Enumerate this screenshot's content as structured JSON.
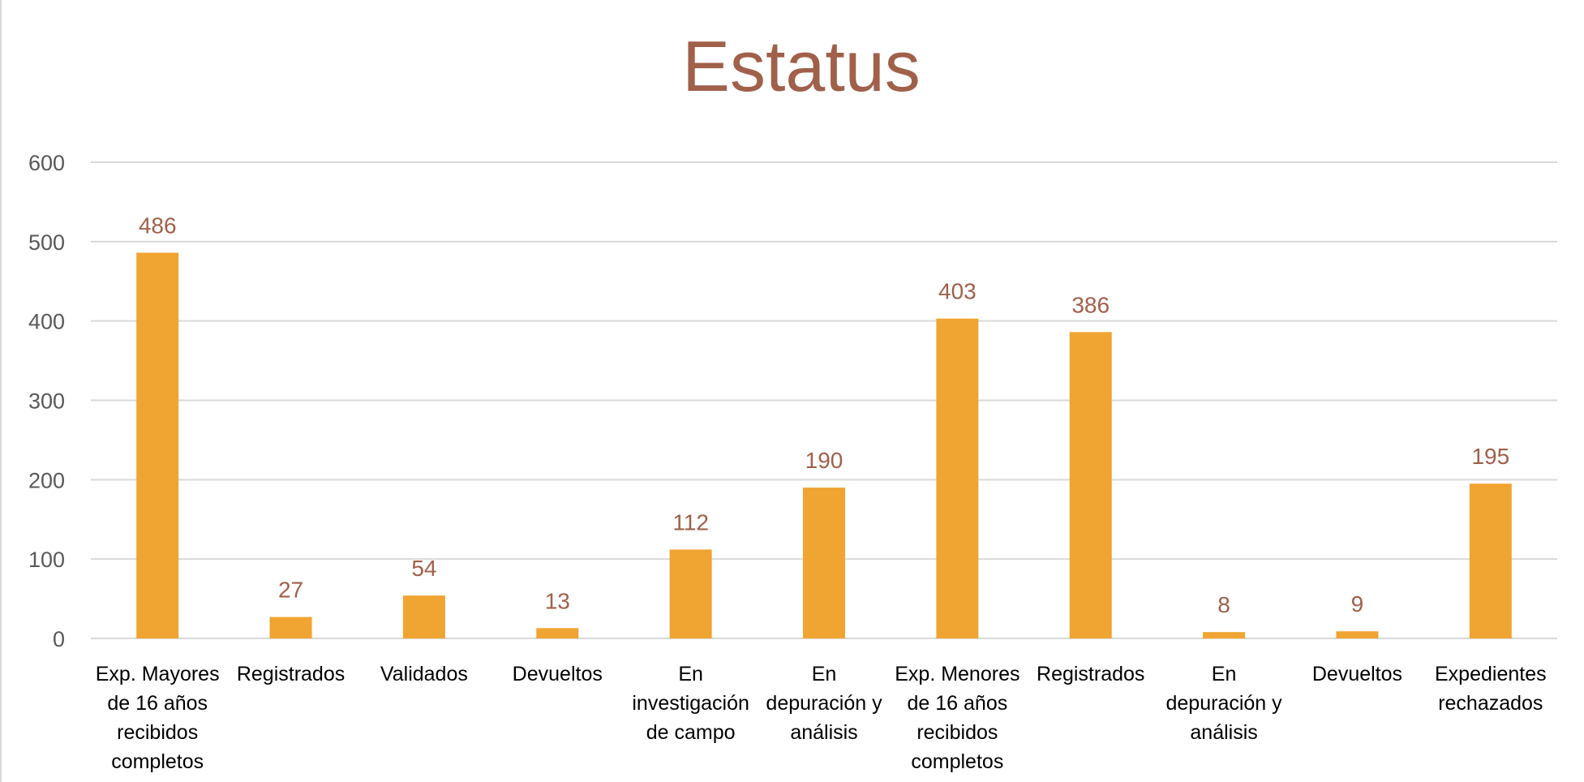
{
  "chart_data": {
    "type": "bar",
    "title": "Estatus",
    "categories": [
      "Exp. Mayores de 16 años recibidos completos",
      "Registrados",
      "Validados",
      "Devueltos",
      "En investigación de campo",
      "En depuración y análisis",
      "Exp. Menores de 16 años recibidos completos",
      "Registrados",
      "En depuración y análisis",
      "Devueltos",
      "Expedientes rechazados"
    ],
    "category_lines": [
      [
        "Exp. Mayores",
        "de 16 años",
        "recibidos",
        "completos"
      ],
      [
        "Registrados"
      ],
      [
        "Validados"
      ],
      [
        "Devueltos"
      ],
      [
        "En",
        "investigación",
        "de campo"
      ],
      [
        "En",
        "depuración y",
        "análisis"
      ],
      [
        "Exp. Menores",
        "de 16 años",
        "recibidos",
        "completos"
      ],
      [
        "Registrados"
      ],
      [
        "En",
        "depuración y",
        "análisis"
      ],
      [
        "Devueltos"
      ],
      [
        "Expedientes",
        "rechazados"
      ]
    ],
    "values": [
      486,
      27,
      54,
      13,
      112,
      190,
      403,
      386,
      8,
      9,
      195
    ],
    "ylim": [
      0,
      600
    ],
    "yticks": [
      0,
      100,
      200,
      300,
      400,
      500,
      600
    ],
    "grid": true,
    "legend": "none",
    "colors": {
      "bar": "#f0a431",
      "title": "#a0604a",
      "data_label": "#a0604a",
      "gridline": "#d9d9d9",
      "tick_label": "#595959"
    }
  }
}
